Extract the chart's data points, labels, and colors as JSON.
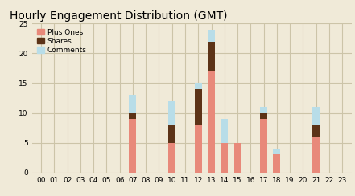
{
  "title": "Hourly Engagement Distribution (GMT)",
  "hours": [
    "00",
    "01",
    "02",
    "03",
    "04",
    "05",
    "06",
    "07",
    "08",
    "09",
    "10",
    "11",
    "12",
    "13",
    "14",
    "15",
    "16",
    "17",
    "18",
    "19",
    "20",
    "21",
    "22",
    "23"
  ],
  "plus_ones": [
    0,
    0,
    0,
    0,
    0,
    0,
    0,
    9,
    0,
    0,
    5,
    0,
    8,
    17,
    5,
    5,
    0,
    9,
    3,
    0,
    0,
    6,
    0,
    0
  ],
  "shares": [
    0,
    0,
    0,
    0,
    0,
    0,
    0,
    1,
    0,
    0,
    3,
    0,
    6,
    5,
    0,
    0,
    0,
    1,
    0,
    0,
    0,
    2,
    0,
    0
  ],
  "comments": [
    0,
    0,
    0,
    0,
    0,
    0,
    0,
    3,
    0,
    0,
    4,
    0,
    1,
    2,
    4,
    0,
    0,
    1,
    1,
    0,
    0,
    3,
    0,
    0
  ],
  "plus_ones_color": "#e8897a",
  "shares_color": "#5c3317",
  "comments_color": "#b8dde8",
  "background_color": "#f0ead8",
  "grid_color": "#ccc4a8",
  "ylim": [
    0,
    25
  ],
  "yticks": [
    0,
    5,
    10,
    15,
    20,
    25
  ],
  "legend_labels": [
    "Plus Ones",
    "Shares",
    "Comments"
  ],
  "title_fontsize": 10,
  "tick_fontsize": 6.5
}
